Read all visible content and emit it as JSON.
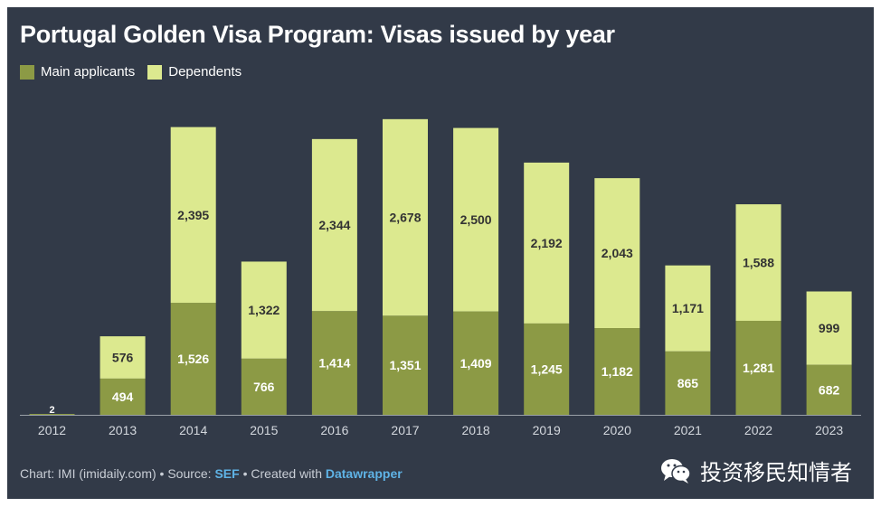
{
  "chart_data": {
    "type": "bar",
    "stacked": true,
    "title": "Portugal Golden Visa Program: Visas issued by year",
    "categories": [
      "2012",
      "2013",
      "2014",
      "2015",
      "2016",
      "2017",
      "2018",
      "2019",
      "2020",
      "2021",
      "2022",
      "2023"
    ],
    "series": [
      {
        "name": "Main applicants",
        "color": "#8c9a45",
        "values": [
          2,
          494,
          1526,
          766,
          1414,
          1351,
          1409,
          1245,
          1182,
          865,
          1281,
          682
        ],
        "labels": [
          "2",
          "494",
          "1,526",
          "766",
          "1,414",
          "1,351",
          "1,409",
          "1,245",
          "1,182",
          "865",
          "1,281",
          "682"
        ]
      },
      {
        "name": "Dependents",
        "color": "#dce98f",
        "values": [
          0,
          576,
          2395,
          1322,
          2344,
          2678,
          2500,
          2192,
          2043,
          1171,
          1588,
          999
        ],
        "labels": [
          "",
          "576",
          "2,395",
          "1,322",
          "2,344",
          "2,678",
          "2,500",
          "2,192",
          "2,043",
          "1,171",
          "1,588",
          "999"
        ]
      }
    ],
    "ylim": [
      0,
      4100
    ],
    "legend_position": "top-left",
    "grid": false
  },
  "footer": {
    "prefix": "Chart: IMI (imidaily.com) • Source: ",
    "source": "SEF",
    "middle": " • Created with ",
    "tool": "Datawrapper"
  },
  "brand": {
    "text": "投资移民知情者",
    "icon": "wechat-icon"
  },
  "colors": {
    "background": "#323a48",
    "main": "#8c9a45",
    "dependents": "#dce98f"
  }
}
